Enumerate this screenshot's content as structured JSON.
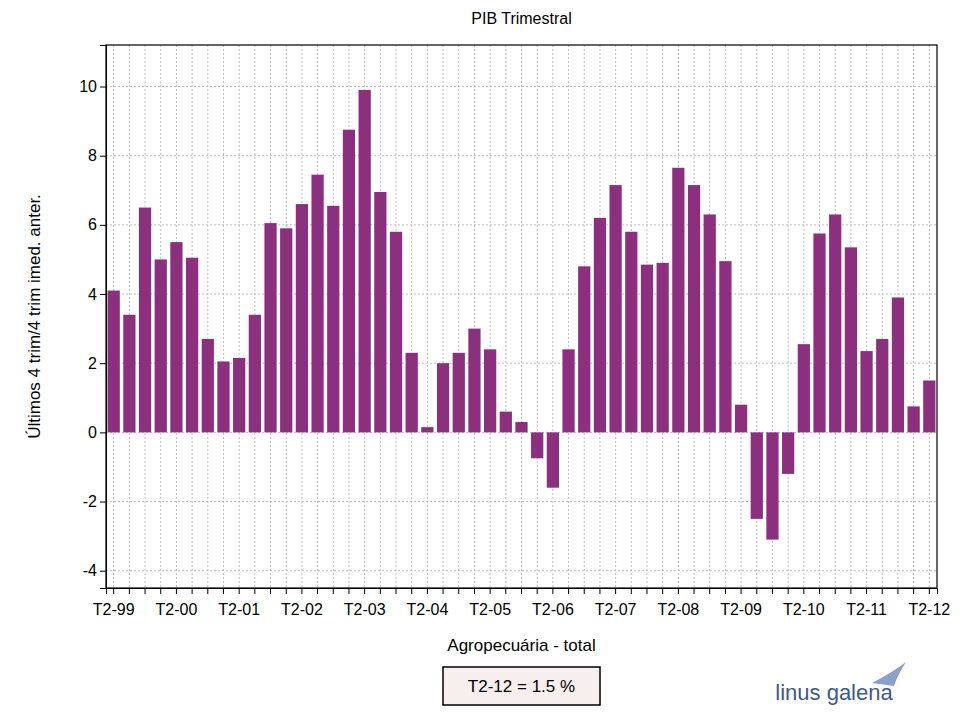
{
  "chart_data": {
    "type": "bar",
    "title": "PIB Trimestral",
    "x_label": "Agropecuária - total",
    "y_label": "Últimos 4 trim/4 trim imed. anter.",
    "annotations": [
      "T2-12 = 1.5 %",
      "linus galena"
    ],
    "categories": [
      "T2-99",
      null,
      null,
      null,
      "T2-00",
      null,
      null,
      null,
      "T2-01",
      null,
      null,
      null,
      "T2-02",
      null,
      null,
      null,
      "T2-03",
      null,
      null,
      null,
      "T2-04",
      null,
      null,
      null,
      "T2-05",
      null,
      null,
      null,
      "T2-06",
      null,
      null,
      null,
      "T2-07",
      null,
      null,
      null,
      "T2-08",
      null,
      null,
      null,
      "T2-09",
      null,
      null,
      null,
      "T2-10",
      null,
      null,
      null,
      "T2-11",
      null,
      null,
      null,
      "T2-12"
    ],
    "values": [
      4.1,
      3.4,
      6.5,
      5.0,
      5.5,
      5.05,
      2.7,
      2.05,
      2.15,
      3.4,
      6.05,
      5.9,
      6.6,
      7.45,
      6.55,
      8.75,
      9.9,
      6.95,
      5.8,
      2.3,
      0.15,
      2.0,
      2.3,
      3.0,
      2.4,
      0.6,
      0.3,
      -0.75,
      -1.6,
      2.4,
      4.8,
      6.2,
      7.15,
      5.8,
      4.85,
      4.9,
      7.65,
      7.15,
      6.3,
      4.95,
      0.8,
      -2.5,
      -3.1,
      -1.2,
      2.55,
      5.75,
      6.3,
      5.35,
      2.35,
      2.7,
      3.9,
      0.75,
      1.5
    ],
    "color": "#8b2f7e",
    "ylim": [
      -4.5,
      11.2
    ],
    "yticks": [
      -4,
      -2,
      0,
      2,
      4,
      6,
      8,
      10
    ],
    "grid": true
  }
}
